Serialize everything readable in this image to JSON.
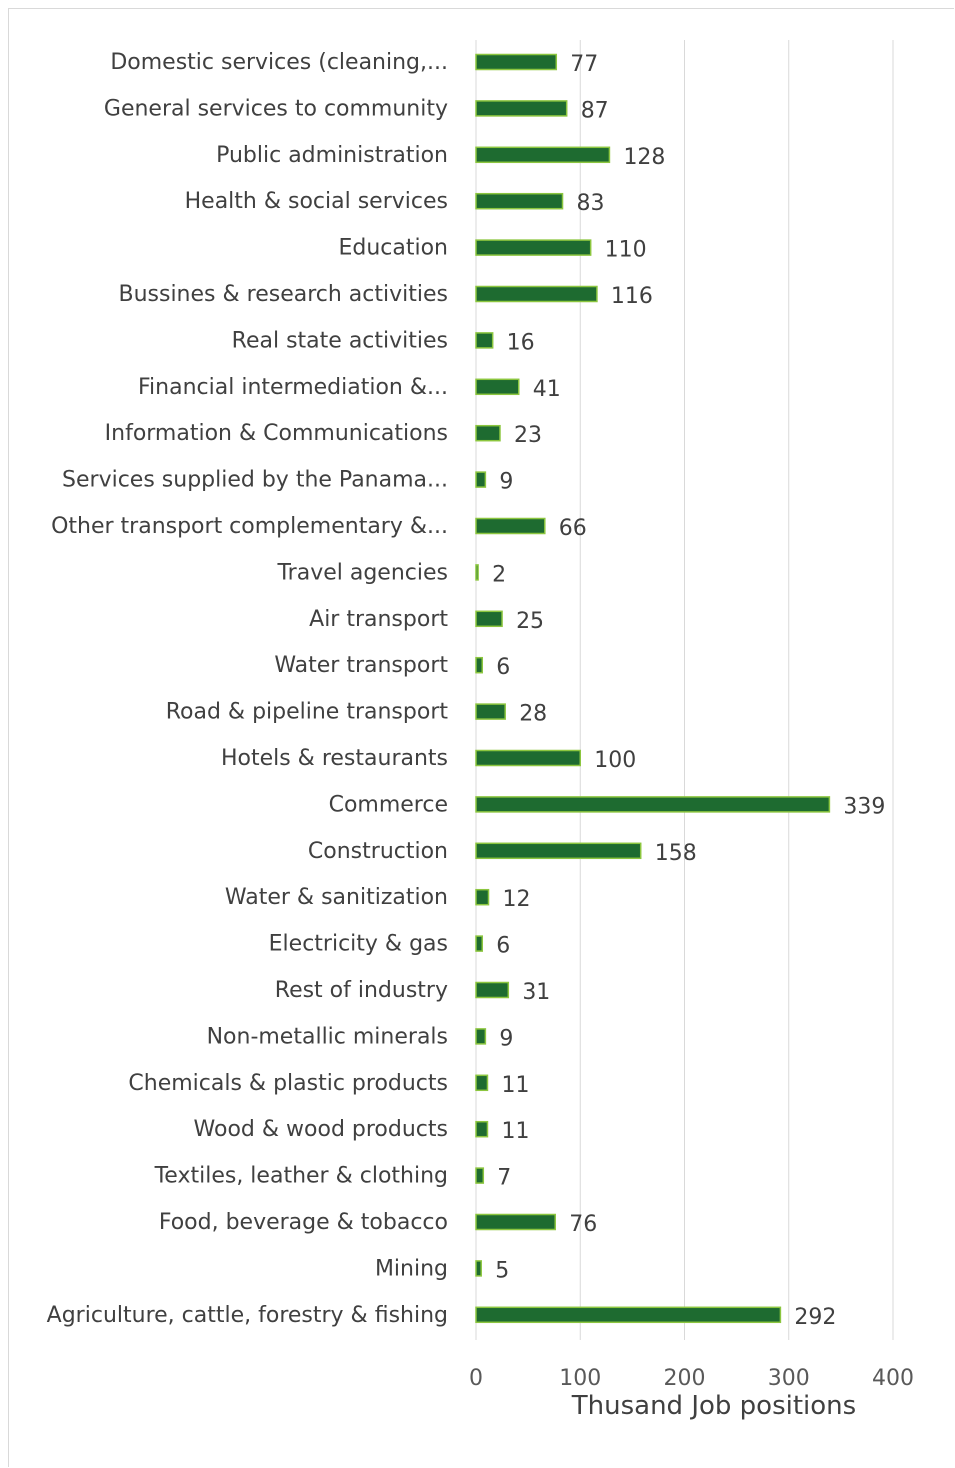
{
  "chart_data": {
    "type": "bar",
    "orientation": "horizontal",
    "title": "",
    "xlabel": "Thusand Job positions",
    "ylabel": "",
    "xlim": [
      0,
      400
    ],
    "x_ticks": [
      0,
      100,
      200,
      300,
      400
    ],
    "grid": true,
    "legend": "none",
    "colors": {
      "bar_fill": "#1e6b30",
      "bar_border": "#8cc63f"
    },
    "categories": [
      "Domestic services (cleaning,...",
      "General services to community",
      "Public administration",
      "Health & social services",
      "Education",
      "Bussines & research activities",
      "Real state activities",
      "Financial intermediation &...",
      "Information & Communications",
      "Services supplied by the Panama...",
      "Other transport complementary &...",
      "Travel agencies",
      "Air transport",
      "Water transport",
      "Road & pipeline transport",
      "Hotels & restaurants",
      "Commerce",
      "Construction",
      "Water & sanitization",
      "Electricity & gas",
      "Rest of industry",
      "Non-metallic minerals",
      "Chemicals & plastic products",
      "Wood & wood products",
      "Textiles, leather  & clothing",
      "Food, beverage & tobacco",
      "Mining",
      "Agriculture, cattle, forestry & fishing"
    ],
    "values": [
      77,
      87,
      128,
      83,
      110,
      116,
      16,
      41,
      23,
      9,
      66,
      2,
      25,
      6,
      28,
      100,
      339,
      158,
      12,
      6,
      31,
      9,
      11,
      11,
      7,
      76,
      5,
      292
    ]
  }
}
